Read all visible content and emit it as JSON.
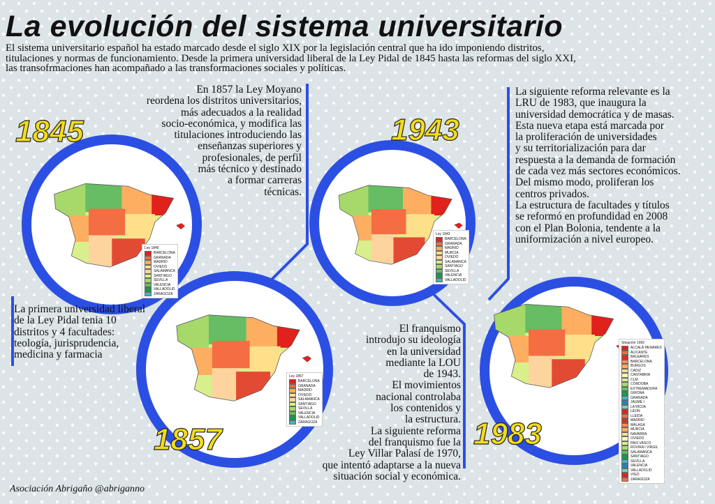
{
  "title": "La evolución del sistema universitario",
  "intro": [
    "El sistema universitario español ha estado marcado desde el siglo XIX por la legislación central que ha ido imponiendo distritos,",
    "titulaciones y normas de funcionamiento. Desde la primera universidad liberal de la Ley Pidal de 1845 hasta las reformas del siglo XXI,",
    "las transofrmaciones han acompañado a las transformaciones sociales y políticas."
  ],
  "sections": [
    {
      "year": "1845",
      "text": [
        "La primera universidad liberal",
        "de la Ley Pidal tenia 10",
        "distritos y 4 facultades:",
        "teología, jurisprudencia,",
        "medicina y farmacia"
      ],
      "legend": {
        "title": "Ley 1845",
        "items": [
          "BARCELONA",
          "GRANADA",
          "MADRID",
          "OVIEDO",
          "SALAMANCA",
          "SANTIAGO",
          "SEVILLA",
          "VALENCIA",
          "VALLADOLID",
          "ZARAGOZA"
        ]
      }
    },
    {
      "year": "1857",
      "text": [
        "En 1857 la Ley Moyano",
        "reordena los distritos universitarios,",
        "más adecuados a la realidad",
        "socio-económica, y modifica las",
        "titulaciones introduciendo las",
        "enseñanzas superiores y",
        "profesionales, de perfil",
        "más técnico y destinado",
        "a formar carreras",
        "técnicas."
      ],
      "legend": {
        "title": "Ley 1857",
        "items": [
          "BARCELONA",
          "GRANADA",
          "MADRID",
          "OVIEDO",
          "SALAMANCA",
          "SANTIAGO",
          "SEVILLA",
          "VALENCIA",
          "VALLADOLID",
          "ZARAGOZA"
        ]
      }
    },
    {
      "year": "1943",
      "text": [
        "El franquismo",
        "introdujo su ideología",
        "en la universidad",
        "mediante la LOU",
        "de 1943.",
        "El movimientos",
        "nacional controlaba",
        "los contenidos y",
        "la estructura.",
        "La siguiente reforma",
        "del franquismo fue la",
        "Ley Villar Palasí de 1970,",
        "que intentó adaptarse a la nueva",
        "situación social y económica."
      ],
      "legend": {
        "title": "Ley 1943",
        "items": [
          "BARCELONA",
          "GRANADA",
          "MADRID",
          "MURCIA",
          "OVIEDO",
          "SALAMANCA",
          "SANTIAGO",
          "SEVILLA",
          "VALENCIA",
          "VALLADOLID"
        ]
      }
    },
    {
      "year": "1983",
      "text": [
        "La siguiente reforma relevante es la",
        "LRU de 1983, que inaugura la",
        "universidad democrática y de masas.",
        "Esta nueva etapa está marcada por",
        "la proliferación de universidades",
        "y su territorialización para dar",
        "respuesta a la demanda de formación",
        "de cada vez más sectores económicos.",
        "Del mismo modo, proliferan los",
        "centros privados.",
        "La estructura de facultades y títulos",
        "se reformó en profundidad en 2008",
        "con el Plan Bolonia, tendente a la",
        "uniformización a nivel europeo."
      ],
      "legend": {
        "title": "Situación 1992",
        "items": [
          "ALCALÁ HENARES",
          "ALICANTE",
          "BALEARES",
          "BARCELONA",
          "BURGOS",
          "CADIZ",
          "CANTABRIA",
          "CLM",
          "CÓRDOBA",
          "EXTREMADURA",
          "GIRONA",
          "GRANADA",
          "JAUME I",
          "LA RIOJA",
          "LEON",
          "LLEIDA",
          "MADRID",
          "MÁLAGA",
          "MURCIA",
          "NAVARRA",
          "OVIEDO",
          "PAIS VASCO",
          "ROVIRA I VIRGIL",
          "SALAMANCA",
          "SANTIAGO",
          "SEVILLA",
          "VALENCIA",
          "VALLADOLID",
          "VIGO",
          "ZARAGOZA"
        ]
      }
    }
  ],
  "footer": "Asociación Abrigaño @abriganno"
}
